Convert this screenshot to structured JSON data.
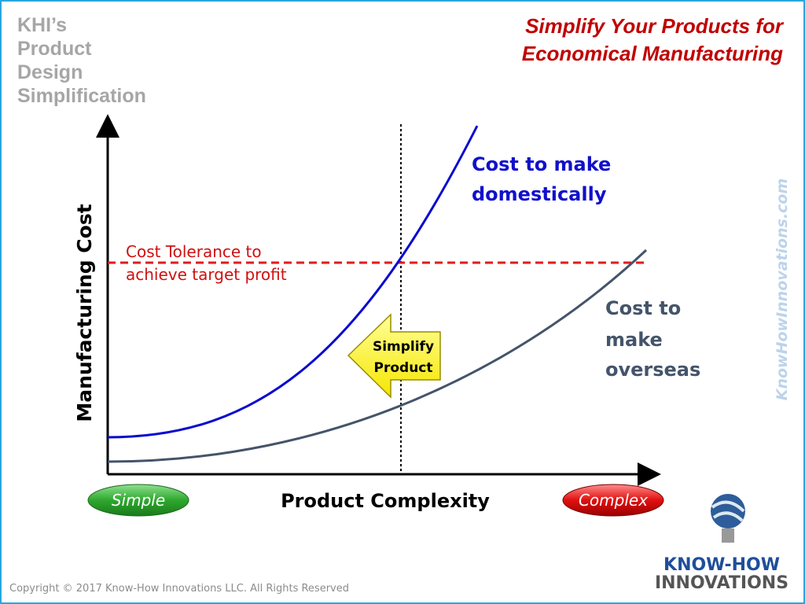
{
  "header": {
    "brand_lines": [
      "KHI’s",
      "Product",
      "Design",
      "Simplification"
    ],
    "title_lines": [
      "Simplify Your Products for",
      "Economical Manufacturing"
    ]
  },
  "diagram": {
    "y_axis_label": "Manufacturing Cost",
    "x_axis_label": "Product Complexity",
    "tolerance_lines": [
      "Cost Tolerance to",
      "achieve target profit"
    ],
    "domestic_lines": [
      "Cost to make",
      "domestically"
    ],
    "overseas_lines": [
      "Cost to",
      "make",
      "overseas"
    ],
    "arrow_lines": [
      "Simplify",
      "Product"
    ],
    "left_end": "Simple",
    "right_end": "Complex"
  },
  "footer": {
    "website": "KnowHowInnovations.com",
    "copyright": "Copyright © 2017 Know-How Innovations LLC. All Rights Reserved",
    "logo_lines": [
      "KNOW-HOW",
      "INNOVATIONS"
    ]
  }
}
